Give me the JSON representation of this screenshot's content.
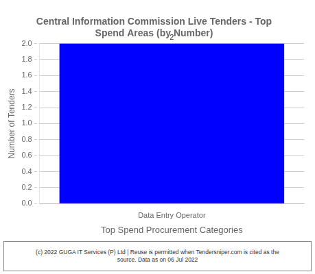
{
  "chart_data": {
    "type": "bar",
    "title": "Central Information Commission Live Tenders - Top\nSpend Areas (by Number)",
    "categories": [
      "Data Entry Operator"
    ],
    "values": [
      2
    ],
    "color": "#0000FF",
    "xlabel": "Top Spend Procurement Categories",
    "ylabel": "Number of Tenders",
    "ylim": [
      0.0,
      2.0
    ],
    "yticks": [
      {
        "value": 0.0,
        "label": "0.0"
      },
      0.2,
      0.4,
      0.6,
      0.8,
      {
        "value": 1.0,
        "label": "1.0"
      },
      1.2,
      1.4,
      1.6,
      1.8,
      {
        "value": 2.0,
        "label": "2.0"
      }
    ],
    "grid": true,
    "data_labels": true,
    "footer": "(c) 2022 GUGA IT Services (P) Ltd | Reuse is permitted when Tendersniper.com is cited as the\nsource. Data as on 06 Jul 2022"
  }
}
